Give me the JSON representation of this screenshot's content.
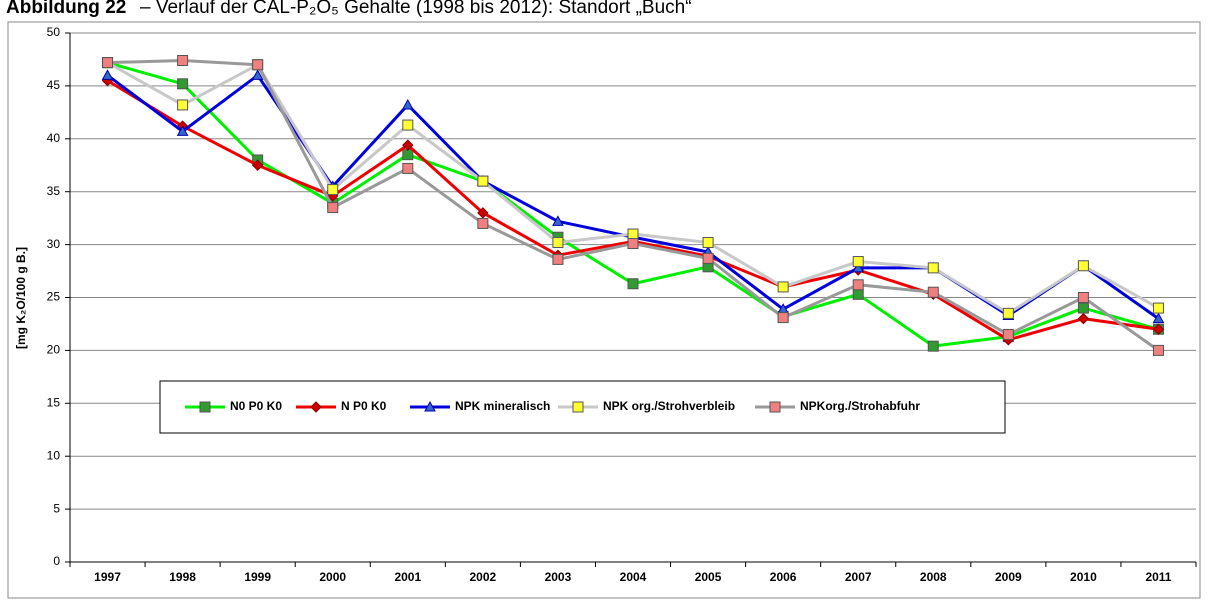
{
  "chart_data": {
    "type": "line",
    "title_label": "Abbildung 22",
    "title": "– Verlauf der CAL-P₂O₅ Gehalte (1998 bis 2012): Standort „Buch“",
    "y_label": "[mg K₂O/100 g B.]",
    "categories": [
      "1997",
      "1998",
      "1999",
      "2000",
      "2001",
      "2002",
      "2003",
      "2004",
      "2005",
      "2006",
      "2007",
      "2008",
      "2009",
      "2010",
      "2011"
    ],
    "ylim": [
      0,
      50
    ],
    "yticks": [
      0,
      5,
      10,
      15,
      20,
      25,
      30,
      35,
      40,
      45,
      50
    ],
    "grid": true,
    "series": [
      {
        "name": "N0 P0 K0",
        "color": "#00ee00",
        "marker_color": "#339933",
        "marker": "square",
        "values": [
          47.2,
          45.2,
          38,
          33.9,
          38.5,
          36,
          30.7,
          26.3,
          27.9,
          23.2,
          25.3,
          20.4,
          21.3,
          24,
          22
        ]
      },
      {
        "name": "N P0 K0",
        "color": "#ee0000",
        "marker_color": "#cc0000",
        "marker": "diamond",
        "values": [
          45.5,
          41.2,
          37.5,
          34.6,
          39.4,
          33,
          29,
          30.3,
          28.9,
          26,
          27.6,
          25.3,
          21,
          23,
          22
        ]
      },
      {
        "name": "NPK mineralisch",
        "color": "#0000dd",
        "marker_color": "#3366cc",
        "marker": "triangle",
        "values": [
          46,
          40.7,
          46,
          35.5,
          43.2,
          36,
          32.2,
          30.7,
          29.3,
          23.9,
          27.8,
          27.8,
          23.3,
          28,
          23
        ]
      },
      {
        "name": "NPK org./Strohverbleib",
        "color": "#c8c8c8",
        "marker_color": "#ffff33",
        "marker": "square",
        "values": [
          47.2,
          43.2,
          47,
          35.2,
          41.3,
          36,
          30.2,
          31,
          30.2,
          26,
          28.4,
          27.8,
          23.5,
          28,
          24
        ]
      },
      {
        "name": "NPKorg./Strohabfuhr",
        "color": "#999999",
        "marker_color": "#f08080",
        "marker": "square",
        "values": [
          47.2,
          47.4,
          47,
          33.5,
          37.2,
          32,
          28.6,
          30.1,
          28.7,
          23.1,
          26.2,
          25.5,
          21.5,
          25,
          20
        ]
      }
    ]
  }
}
